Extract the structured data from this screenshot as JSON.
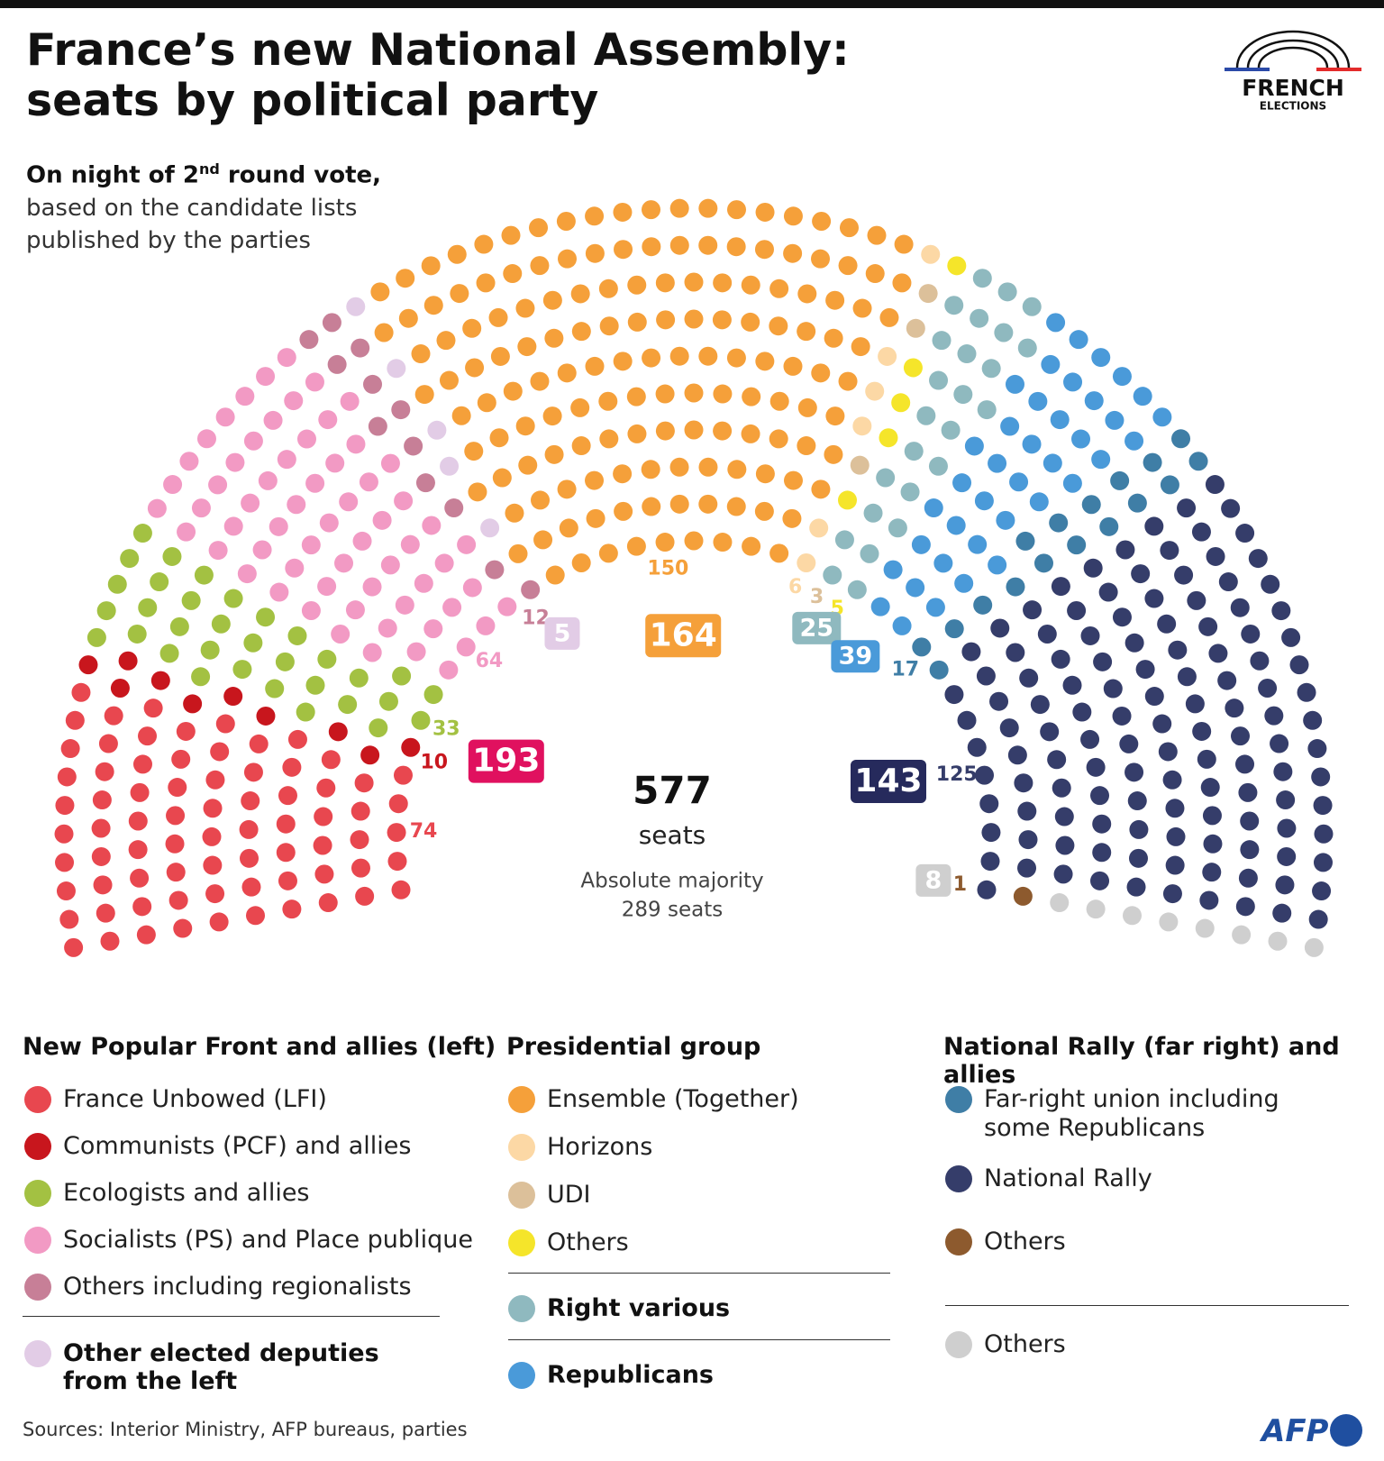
{
  "header": {
    "title_lines": [
      "France’s new National Assembly:",
      "seats by political party"
    ],
    "subtitle_lead": "On night of 2",
    "subtitle_sup": "nd",
    "subtitle_rest": " round vote,",
    "subtitle_lines": [
      "based on the candidate lists",
      "published by the parties"
    ],
    "logo_top": "FRENCH",
    "logo_bottom": "ELECTIONS"
  },
  "chart_data": {
    "type": "parliament",
    "total": 577,
    "total_label": "seats",
    "majority_lines": [
      "Absolute majority",
      "289 seats"
    ],
    "blocs": [
      {
        "name": "New Popular Front and allies (left)",
        "color": "#e0115f",
        "seats": 193,
        "parties": [
          {
            "name": "France Unbowed (LFI)",
            "color": "#e8474f",
            "seats": 74
          },
          {
            "name": "Communists (PCF) and allies",
            "color": "#c8161d",
            "seats": 10
          },
          {
            "name": "Ecologists and allies",
            "color": "#a3c142",
            "seats": 33
          },
          {
            "name": "Socialists (PS) and Place publique",
            "color": "#f29ac4",
            "seats": 64
          },
          {
            "name": "Others including regionalists",
            "color": "#c77f97",
            "seats": 12
          }
        ]
      },
      {
        "name": "Other elected deputies from the left",
        "color": "#e2cce6",
        "seats": 5
      },
      {
        "name": "Presidential group",
        "color": "#f5a03a",
        "seats": 164,
        "parties": [
          {
            "name": "Ensemble (Together)",
            "color": "#f5a03a",
            "seats": 150
          },
          {
            "name": "Horizons",
            "color": "#fcd8a5",
            "seats": 6
          },
          {
            "name": "UDI",
            "color": "#dcc09a",
            "seats": 3
          },
          {
            "name": "Others",
            "color": "#f5e52a",
            "seats": 5
          }
        ]
      },
      {
        "name": "Right various",
        "color": "#8fb9bf",
        "seats": 25
      },
      {
        "name": "Republicans",
        "color": "#4a9ad9",
        "seats": 39
      },
      {
        "name": "National Rally (far right) and allies",
        "color": "#262a5c",
        "seats": 143,
        "parties": [
          {
            "name": "Far-right union including some Republicans",
            "color": "#3f7ea6",
            "seats": 17
          },
          {
            "name": "National Rally",
            "color": "#353d6a",
            "seats": 125
          },
          {
            "name": "Others",
            "color": "#8d5a2e",
            "seats": 1
          }
        ]
      },
      {
        "name": "Others",
        "color": "#cfcfcf",
        "seats": 8
      }
    ]
  },
  "footer": {
    "source": "Sources: Interior Ministry, AFP bureaus, parties",
    "brand": "AFP"
  }
}
